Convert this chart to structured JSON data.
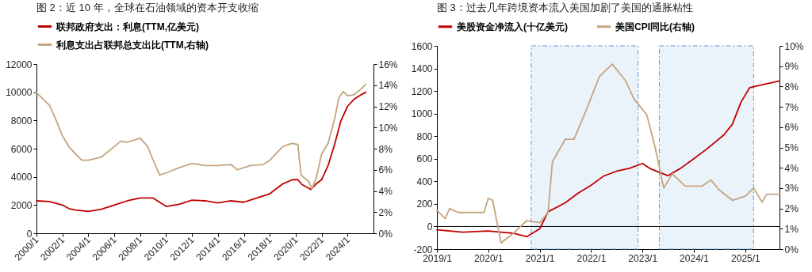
{
  "chart_data": [
    {
      "type": "line",
      "title": "图 2：近 10 年，全球在石油领域的资本开支收缩",
      "legend": "top",
      "xlim": [
        "2000-01",
        "2026-01"
      ],
      "xticks": [
        {
          "value": "2000-01",
          "label": "2000/1"
        },
        {
          "value": "2002-01",
          "label": "2002/1"
        },
        {
          "value": "2004-01",
          "label": "2004/1"
        },
        {
          "value": "2006-01",
          "label": "2006/1"
        },
        {
          "value": "2008-01",
          "label": "2008/1"
        },
        {
          "value": "2010-01",
          "label": "2010/1"
        },
        {
          "value": "2012-01",
          "label": "2012/1"
        },
        {
          "value": "2014-01",
          "label": "2014/1"
        },
        {
          "value": "2016-01",
          "label": "2016/1"
        },
        {
          "value": "2018-01",
          "label": "2018/1"
        },
        {
          "value": "2020-01",
          "label": "2020/1"
        },
        {
          "value": "2022-01",
          "label": "2022/1"
        },
        {
          "value": "2024-01",
          "label": "2024/1"
        }
      ],
      "ylim": [
        0,
        12000
      ],
      "yticks": [
        0,
        2000,
        4000,
        6000,
        8000,
        10000,
        12000
      ],
      "y2lim": [
        0,
        16
      ],
      "y2ticks": [
        {
          "value": 0,
          "label": "0%"
        },
        {
          "value": 2,
          "label": "2%"
        },
        {
          "value": 4,
          "label": "4%"
        },
        {
          "value": 6,
          "label": "6%"
        },
        {
          "value": 8,
          "label": "8%"
        },
        {
          "value": 10,
          "label": "10%"
        },
        {
          "value": 12,
          "label": "12%"
        },
        {
          "value": 14,
          "label": "14%"
        },
        {
          "value": 16,
          "label": "16%"
        }
      ],
      "series": [
        {
          "name": "联邦政府支出：利息(TTM,亿美元)",
          "color": "#c00000",
          "x": [
            "2000-01",
            "2001-01",
            "2002-01",
            "2002-07",
            "2003-01",
            "2004-01",
            "2005-01",
            "2006-01",
            "2007-01",
            "2008-01",
            "2009-01",
            "2009-07",
            "2010-01",
            "2011-01",
            "2012-01",
            "2013-01",
            "2014-01",
            "2015-01",
            "2016-01",
            "2017-01",
            "2018-01",
            "2019-01",
            "2019-10",
            "2020-03",
            "2020-07",
            "2021-01",
            "2021-03",
            "2021-08",
            "2022-01",
            "2022-07",
            "2023-01",
            "2023-07",
            "2024-01",
            "2024-07",
            "2025-01",
            "2025-06"
          ],
          "values": [
            2300,
            2250,
            2000,
            1750,
            1650,
            1550,
            1700,
            2000,
            2300,
            2500,
            2500,
            2200,
            1900,
            2050,
            2350,
            2300,
            2150,
            2300,
            2200,
            2500,
            2800,
            3500,
            3800,
            3800,
            3450,
            3200,
            3100,
            3500,
            3800,
            4800,
            6300,
            8000,
            9000,
            9500,
            9800,
            10000
          ]
        },
        {
          "name": "利息支出占联邦总支出比(TTM,右轴)",
          "color": "#c4a57f",
          "axis": "y2",
          "x": [
            "2000-01",
            "2001-01",
            "2001-08",
            "2002-01",
            "2002-07",
            "2003-01",
            "2003-07",
            "2004-01",
            "2005-01",
            "2006-01",
            "2006-07",
            "2007-01",
            "2008-01",
            "2008-08",
            "2009-01",
            "2009-07",
            "2010-01",
            "2011-01",
            "2012-01",
            "2013-01",
            "2014-01",
            "2015-01",
            "2015-07",
            "2016-07",
            "2017-07",
            "2018-01",
            "2019-01",
            "2019-09",
            "2020-03",
            "2020-06",
            "2021-01",
            "2021-04",
            "2021-08",
            "2022-01",
            "2022-07",
            "2023-01",
            "2023-05",
            "2023-09",
            "2024-01",
            "2024-07",
            "2025-01",
            "2025-06"
          ],
          "values": [
            13.3,
            12.1,
            10.5,
            9.2,
            8.2,
            7.5,
            6.9,
            6.9,
            7.2,
            8.2,
            8.7,
            8.6,
            9.0,
            8.2,
            6.9,
            5.5,
            5.7,
            6.2,
            6.6,
            6.4,
            6.4,
            6.5,
            6.0,
            6.4,
            6.5,
            6.9,
            8.2,
            8.5,
            8.4,
            5.5,
            4.9,
            4.2,
            5.2,
            7.5,
            8.5,
            10.8,
            12.8,
            13.4,
            13.0,
            13.1,
            13.6,
            14.1
          ]
        }
      ]
    },
    {
      "type": "line",
      "title": "图 3：过去几年跨境资本流入美国加剧了美国的通胀粘性",
      "legend": "top",
      "xlim": [
        "2019-01",
        "2025-09"
      ],
      "xticks": [
        {
          "value": "2019-01",
          "label": "2019/1"
        },
        {
          "value": "2020-01",
          "label": "2020/1"
        },
        {
          "value": "2021-01",
          "label": "2021/1"
        },
        {
          "value": "2022-01",
          "label": "2022/1"
        },
        {
          "value": "2023-01",
          "label": "2023/1"
        },
        {
          "value": "2024-01",
          "label": "2024/1"
        },
        {
          "value": "2025-01",
          "label": "2025/1"
        }
      ],
      "ylim": [
        -200,
        1600
      ],
      "yticks": [
        -200,
        0,
        200,
        400,
        600,
        800,
        1000,
        1200,
        1400,
        1600
      ],
      "y2lim": [
        0,
        10
      ],
      "y2ticks": [
        {
          "value": 0,
          "label": "0%"
        },
        {
          "value": 1,
          "label": "1%"
        },
        {
          "value": 2,
          "label": "2%"
        },
        {
          "value": 3,
          "label": "3%"
        },
        {
          "value": 4,
          "label": "4%"
        },
        {
          "value": 5,
          "label": "5%"
        },
        {
          "value": 6,
          "label": "6%"
        },
        {
          "value": 7,
          "label": "7%"
        },
        {
          "value": 8,
          "label": "8%"
        },
        {
          "value": 9,
          "label": "9%"
        },
        {
          "value": 10,
          "label": "10%"
        }
      ],
      "ref_lines": [
        {
          "axis": "y",
          "value": 0,
          "color": "#000000"
        }
      ],
      "bands": [
        {
          "axis": "x",
          "from": "2020-11",
          "to": "2022-12",
          "color": "#5b9bd5"
        },
        {
          "axis": "x",
          "from": "2023-05",
          "to": "2025-03",
          "color": "#5b9bd5"
        }
      ],
      "series": [
        {
          "name": "美股资金净流入(十亿美元)",
          "color": "#c00000",
          "x": [
            "2019-01",
            "2019-07",
            "2020-01",
            "2020-04",
            "2020-07",
            "2020-10",
            "2021-01",
            "2021-03",
            "2021-07",
            "2021-10",
            "2022-01",
            "2022-04",
            "2022-07",
            "2022-10",
            "2023-01",
            "2023-03",
            "2023-07",
            "2023-10",
            "2024-01",
            "2024-04",
            "2024-08",
            "2024-10",
            "2024-12",
            "2025-02",
            "2025-04",
            "2025-09"
          ],
          "values": [
            -30,
            -50,
            -40,
            -50,
            -60,
            -90,
            -20,
            130,
            210,
            295,
            365,
            447,
            490,
            515,
            558,
            510,
            450,
            517,
            600,
            685,
            810,
            906,
            1100,
            1230,
            1248,
            1290
          ]
        },
        {
          "name": "美国CPI同比(右轴)",
          "color": "#c4a57f",
          "axis": "y2",
          "x": [
            "2019-01",
            "2019-03",
            "2019-04",
            "2019-06",
            "2019-12",
            "2020-01",
            "2020-02",
            "2020-04",
            "2020-07",
            "2020-10",
            "2021-01",
            "2021-03",
            "2021-04",
            "2021-07",
            "2021-09",
            "2021-12",
            "2022-03",
            "2022-06",
            "2022-09",
            "2022-11",
            "2023-02",
            "2023-04",
            "2023-06",
            "2023-08",
            "2023-11",
            "2024-03",
            "2024-05",
            "2024-07",
            "2024-10",
            "2025-01",
            "2025-03",
            "2025-05",
            "2025-06",
            "2025-09"
          ],
          "values": [
            1.9,
            1.5,
            2.0,
            1.8,
            1.8,
            2.5,
            2.4,
            0.3,
            0.8,
            1.4,
            1.3,
            1.8,
            4.3,
            5.4,
            5.4,
            6.9,
            8.5,
            9.1,
            8.3,
            7.4,
            6.6,
            5.0,
            3.0,
            3.7,
            3.1,
            3.1,
            3.4,
            2.9,
            2.4,
            2.6,
            3.0,
            2.3,
            2.7,
            2.7
          ]
        }
      ]
    }
  ]
}
